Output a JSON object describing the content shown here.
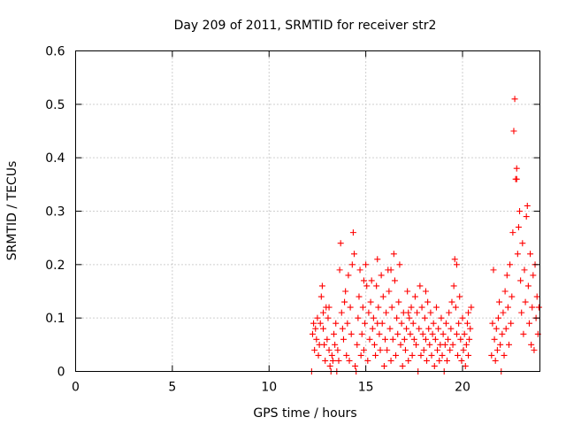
{
  "chart_data": {
    "type": "scatter",
    "title": "Day 209 of 2011, SRMTID for receiver str2",
    "xlabel": "GPS time / hours",
    "ylabel": "SRMTID / TECUs",
    "xlim": [
      0,
      24
    ],
    "ylim": [
      0,
      0.6
    ],
    "xticks": [
      0,
      5,
      10,
      15,
      20
    ],
    "xtick_labels": [
      "0",
      "5",
      "10",
      "15",
      "20"
    ],
    "yticks": [
      0,
      0.1,
      0.2,
      0.3,
      0.4,
      0.5,
      0.6
    ],
    "ytick_labels": [
      "0",
      "0.1",
      "0.2",
      "0.3",
      "0.4",
      "0.5",
      "0.6"
    ],
    "grid": true,
    "marker": "+",
    "series": [
      {
        "color": "#ff0000",
        "points": [
          [
            12.2,
            0.0
          ],
          [
            12.25,
            0.07
          ],
          [
            12.3,
            0.09
          ],
          [
            12.35,
            0.04
          ],
          [
            12.4,
            0.08
          ],
          [
            12.45,
            0.06
          ],
          [
            12.5,
            0.1
          ],
          [
            12.55,
            0.03
          ],
          [
            12.6,
            0.05
          ],
          [
            12.65,
            0.09
          ],
          [
            12.7,
            0.14
          ],
          [
            12.75,
            0.16
          ],
          [
            12.8,
            0.08
          ],
          [
            12.85,
            0.05
          ],
          [
            12.9,
            0.02
          ],
          [
            12.95,
            0.12
          ],
          [
            13.0,
            0.06
          ],
          [
            13.05,
            0.1
          ],
          [
            13.1,
            0.04
          ],
          [
            13.15,
            0.01
          ],
          [
            13.2,
            0.0
          ],
          [
            13.25,
            0.03
          ],
          [
            13.3,
            0.02
          ],
          [
            13.35,
            0.07
          ],
          [
            13.4,
            0.05
          ],
          [
            13.45,
            0.09
          ],
          [
            13.5,
            0.0
          ],
          [
            13.55,
            0.04
          ],
          [
            13.6,
            0.02
          ],
          [
            13.65,
            0.19
          ],
          [
            13.7,
            0.24
          ],
          [
            13.75,
            0.11
          ],
          [
            13.8,
            0.08
          ],
          [
            13.85,
            0.06
          ],
          [
            13.9,
            0.13
          ],
          [
            13.95,
            0.15
          ],
          [
            14.0,
            0.03
          ],
          [
            14.05,
            0.09
          ],
          [
            14.1,
            0.18
          ],
          [
            14.15,
            0.02
          ],
          [
            14.2,
            0.12
          ],
          [
            14.25,
            0.07
          ],
          [
            14.3,
            0.2
          ],
          [
            14.35,
            0.26
          ],
          [
            14.4,
            0.22
          ],
          [
            14.45,
            0.01
          ],
          [
            14.5,
            0.0
          ],
          [
            14.55,
            0.05
          ],
          [
            14.6,
            0.1
          ],
          [
            14.65,
            0.14
          ],
          [
            14.7,
            0.19
          ],
          [
            14.75,
            0.03
          ],
          [
            14.8,
            0.07
          ],
          [
            14.85,
            0.12
          ],
          [
            14.9,
            0.04
          ],
          [
            14.95,
            0.09
          ],
          [
            15.0,
            0.2
          ],
          [
            15.05,
            0.16
          ],
          [
            15.1,
            0.02
          ],
          [
            15.15,
            0.11
          ],
          [
            15.2,
            0.06
          ],
          [
            15.25,
            0.13
          ],
          [
            15.3,
            0.17
          ],
          [
            15.35,
            0.08
          ],
          [
            15.4,
            0.1
          ],
          [
            15.45,
            0.05
          ],
          [
            15.5,
            0.03
          ],
          [
            15.55,
            0.16
          ],
          [
            15.6,
            0.21
          ],
          [
            15.65,
            0.12
          ],
          [
            15.7,
            0.07
          ],
          [
            15.75,
            0.04
          ],
          [
            15.8,
            0.18
          ],
          [
            15.85,
            0.09
          ],
          [
            15.9,
            0.14
          ],
          [
            15.95,
            0.01
          ],
          [
            16.0,
            0.06
          ],
          [
            16.05,
            0.11
          ],
          [
            16.1,
            0.04
          ],
          [
            16.15,
            0.19
          ],
          [
            16.2,
            0.15
          ],
          [
            16.25,
            0.08
          ],
          [
            16.3,
            0.02
          ],
          [
            16.35,
            0.12
          ],
          [
            16.4,
            0.06
          ],
          [
            16.45,
            0.22
          ],
          [
            16.5,
            0.17
          ],
          [
            16.55,
            0.03
          ],
          [
            16.6,
            0.1
          ],
          [
            16.65,
            0.07
          ],
          [
            16.7,
            0.13
          ],
          [
            16.75,
            0.2
          ],
          [
            16.8,
            0.05
          ],
          [
            16.85,
            0.09
          ],
          [
            16.9,
            0.01
          ],
          [
            16.95,
            0.11
          ],
          [
            17.0,
            0.06
          ],
          [
            17.05,
            0.04
          ],
          [
            17.1,
            0.08
          ],
          [
            17.15,
            0.15
          ],
          [
            17.2,
            0.02
          ],
          [
            17.25,
            0.1
          ],
          [
            17.3,
            0.07
          ],
          [
            17.35,
            0.12
          ],
          [
            17.4,
            0.03
          ],
          [
            17.45,
            0.09
          ],
          [
            17.5,
            0.06
          ],
          [
            17.55,
            0.14
          ],
          [
            17.6,
            0.05
          ],
          [
            17.65,
            0.11
          ],
          [
            17.7,
            0.0
          ],
          [
            17.75,
            0.08
          ],
          [
            17.8,
            0.16
          ],
          [
            17.85,
            0.03
          ],
          [
            17.9,
            0.12
          ],
          [
            17.95,
            0.07
          ],
          [
            18.0,
            0.04
          ],
          [
            18.05,
            0.1
          ],
          [
            18.1,
            0.06
          ],
          [
            18.15,
            0.02
          ],
          [
            18.2,
            0.13
          ],
          [
            18.25,
            0.08
          ],
          [
            18.3,
            0.05
          ],
          [
            18.35,
            0.11
          ],
          [
            18.4,
            0.03
          ],
          [
            18.45,
            0.07
          ],
          [
            18.5,
            0.09
          ],
          [
            18.55,
            0.01
          ],
          [
            18.6,
            0.06
          ],
          [
            18.65,
            0.12
          ],
          [
            18.7,
            0.04
          ],
          [
            18.75,
            0.08
          ],
          [
            18.8,
            0.02
          ],
          [
            18.85,
            0.05
          ],
          [
            18.9,
            0.1
          ],
          [
            18.95,
            0.03
          ],
          [
            19.0,
            0.07
          ],
          [
            19.05,
            0.0
          ],
          [
            19.1,
            0.05
          ],
          [
            19.15,
            0.09
          ],
          [
            19.2,
            0.02
          ],
          [
            19.25,
            0.06
          ],
          [
            19.3,
            0.11
          ],
          [
            19.35,
            0.04
          ],
          [
            19.4,
            0.08
          ],
          [
            19.45,
            0.13
          ],
          [
            19.5,
            0.05
          ],
          [
            19.55,
            0.16
          ],
          [
            19.6,
            0.21
          ],
          [
            19.65,
            0.12
          ],
          [
            19.7,
            0.07
          ],
          [
            19.75,
            0.03
          ],
          [
            19.8,
            0.09
          ],
          [
            19.85,
            0.14
          ],
          [
            19.9,
            0.06
          ],
          [
            19.95,
            0.02
          ],
          [
            20.0,
            0.1
          ],
          [
            20.05,
            0.04
          ],
          [
            20.1,
            0.07
          ],
          [
            20.15,
            0.01
          ],
          [
            20.2,
            0.05
          ],
          [
            20.25,
            0.09
          ],
          [
            20.3,
            0.03
          ],
          [
            20.35,
            0.06
          ],
          [
            20.4,
            0.08
          ],
          [
            20.45,
            0.12
          ],
          [
            21.5,
            0.03
          ],
          [
            21.55,
            0.09
          ],
          [
            21.6,
            0.19
          ],
          [
            21.65,
            0.06
          ],
          [
            21.7,
            0.02
          ],
          [
            21.75,
            0.08
          ],
          [
            21.8,
            0.04
          ],
          [
            21.85,
            0.1
          ],
          [
            21.9,
            0.13
          ],
          [
            21.95,
            0.05
          ],
          [
            22.0,
            0.0
          ],
          [
            22.05,
            0.07
          ],
          [
            22.1,
            0.11
          ],
          [
            22.15,
            0.03
          ],
          [
            22.2,
            0.15
          ],
          [
            22.25,
            0.08
          ],
          [
            22.3,
            0.18
          ],
          [
            22.35,
            0.12
          ],
          [
            22.4,
            0.05
          ],
          [
            22.45,
            0.2
          ],
          [
            22.5,
            0.09
          ],
          [
            22.55,
            0.14
          ],
          [
            22.6,
            0.26
          ],
          [
            22.65,
            0.45
          ],
          [
            22.7,
            0.51
          ],
          [
            22.75,
            0.36
          ],
          [
            22.8,
            0.38
          ],
          [
            22.85,
            0.22
          ],
          [
            22.9,
            0.27
          ],
          [
            22.95,
            0.3
          ],
          [
            23.0,
            0.17
          ],
          [
            23.05,
            0.11
          ],
          [
            23.1,
            0.24
          ],
          [
            23.15,
            0.07
          ],
          [
            23.2,
            0.19
          ],
          [
            23.25,
            0.13
          ],
          [
            23.3,
            0.29
          ],
          [
            23.35,
            0.31
          ],
          [
            23.4,
            0.16
          ],
          [
            23.45,
            0.09
          ],
          [
            23.5,
            0.22
          ],
          [
            23.55,
            0.05
          ],
          [
            23.6,
            0.12
          ],
          [
            23.65,
            0.18
          ],
          [
            23.7,
            0.04
          ],
          [
            23.75,
            0.2
          ],
          [
            23.8,
            0.1
          ],
          [
            23.85,
            0.14
          ],
          [
            23.9,
            0.07
          ],
          [
            23.95,
            0.12
          ],
          [
            22.8,
            0.36
          ],
          [
            13.1,
            0.12
          ],
          [
            14.9,
            0.17
          ],
          [
            16.3,
            0.19
          ],
          [
            18.1,
            0.15
          ],
          [
            19.7,
            0.2
          ],
          [
            20.3,
            0.11
          ],
          [
            15.6,
            0.09
          ],
          [
            17.2,
            0.11
          ],
          [
            12.8,
            0.11
          ]
        ]
      }
    ]
  }
}
